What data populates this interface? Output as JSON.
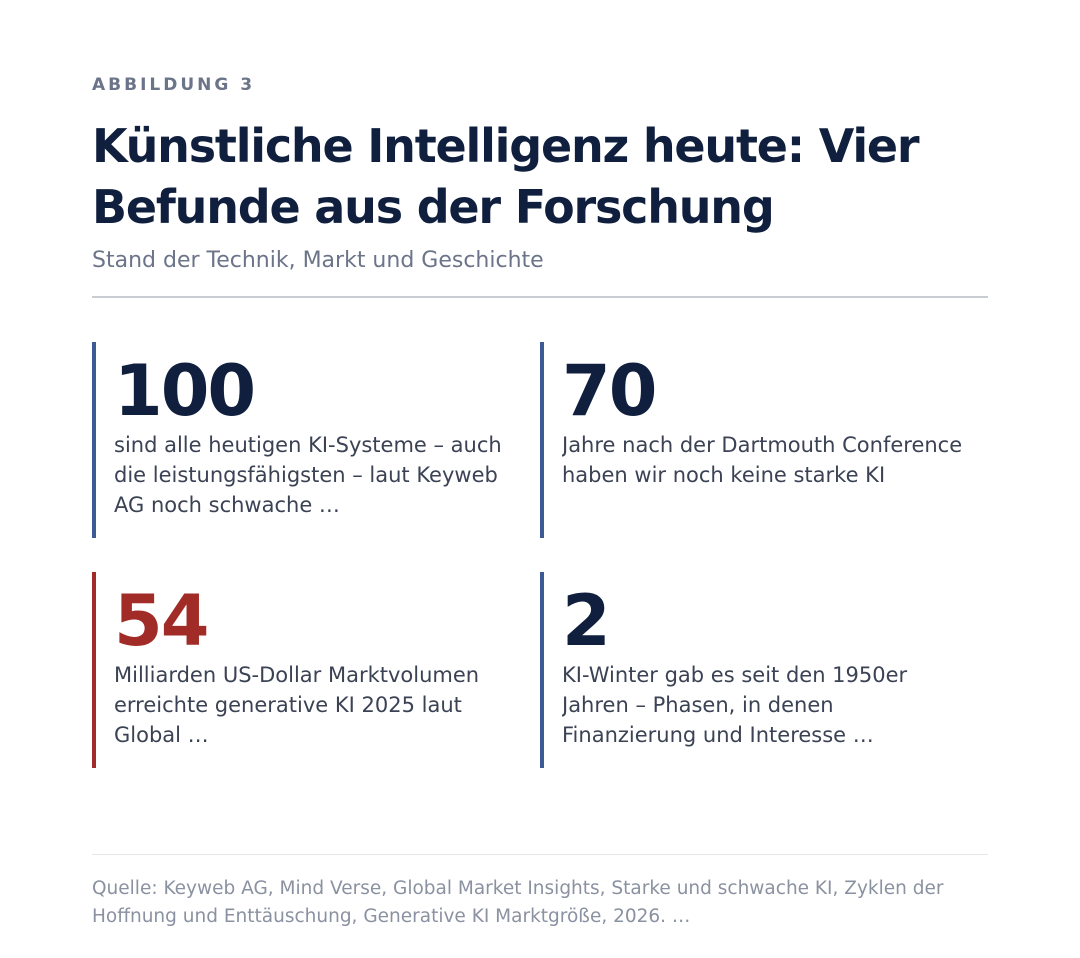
{
  "figure": {
    "kicker": "ABBILDUNG 3",
    "title": "Künstliche Intelligenz heute: Vier Befunde aus der Forschung",
    "subtitle": "Stand der Technik, Markt und Geschichte"
  },
  "stats": [
    {
      "value": "100",
      "text": "sind alle heutigen KI-Systeme – auch die leistungsfähigsten – laut Keyweb AG noch schwache …",
      "color": "#0f1f3d",
      "bar_color": "#3b5b95"
    },
    {
      "value": "70",
      "text": "Jahre nach der Dartmouth Conference haben wir noch keine starke KI",
      "color": "#0f1f3d",
      "bar_color": "#3b5b95"
    },
    {
      "value": "54",
      "text": "Milliarden US-Dollar Marktvolumen erreichte generative KI 2025 laut Global …",
      "color": "#a12b27",
      "bar_color": "#a12b27"
    },
    {
      "value": "2",
      "text": "KI-Winter gab es seit den 1950er Jahren – Phasen, in denen Finanzierung und Interesse …",
      "color": "#0f1f3d",
      "bar_color": "#3b5b95"
    }
  ],
  "source": "Quelle: Keyweb AG, Mind Verse, Global Market Insights, Starke und schwache KI, Zyklen der Hoffnung und Enttäuschung, Generative KI Marktgröße, 2026. …"
}
